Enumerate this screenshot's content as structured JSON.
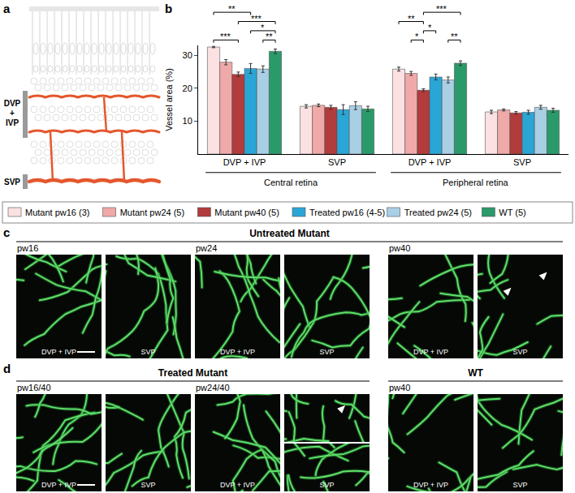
{
  "chart_data": {
    "type": "bar",
    "categories": [
      "DVP + IVP",
      "SVP",
      "DVP + IVP",
      "SVP"
    ],
    "category_groups": [
      {
        "label": "Central retina",
        "span": [
          0,
          1
        ]
      },
      {
        "label": "Peripheral retina",
        "span": [
          2,
          3
        ]
      }
    ],
    "y_label": "Vessel area (%)",
    "ylim": [
      0,
      33
    ],
    "yticks": [
      10,
      20,
      30
    ],
    "grid": false,
    "legend": "bottom",
    "series": [
      {
        "name": "Mutant pw16 (3)",
        "color": "#fbe1e1",
        "values": [
          32.5,
          14.5,
          25.8,
          12.8
        ],
        "errors": [
          0.2,
          0.5,
          0.6,
          0.5
        ]
      },
      {
        "name": "Mutant pw24 (5)",
        "color": "#f0a9a9",
        "values": [
          27.9,
          14.8,
          24.5,
          13.4
        ],
        "errors": [
          0.8,
          0.4,
          0.6,
          0.3
        ]
      },
      {
        "name": "Mutant pw40 (5)",
        "color": "#b23b3b",
        "values": [
          24.2,
          14.2,
          19.4,
          12.5
        ],
        "errors": [
          0.7,
          0.6,
          0.4,
          0.4
        ]
      },
      {
        "name": "Treated pw16 (4-5)",
        "color": "#2aa6d6",
        "values": [
          26.0,
          13.5,
          23.4,
          12.7
        ],
        "errors": [
          1.5,
          1.5,
          0.9,
          0.6
        ]
      },
      {
        "name": "Treated pw24 (5)",
        "color": "#a9cfe5",
        "values": [
          25.8,
          14.7,
          22.5,
          14.2
        ],
        "errors": [
          1.0,
          1.2,
          0.9,
          0.6
        ]
      },
      {
        "name": "WT (5)",
        "color": "#2b9a6b",
        "values": [
          31.2,
          13.7,
          27.6,
          13.3
        ],
        "errors": [
          0.7,
          0.8,
          0.7,
          0.6
        ]
      }
    ],
    "significance": [
      {
        "category": 0,
        "from": 0,
        "to": 2,
        "label": "***"
      },
      {
        "category": 0,
        "from": 2,
        "to": 5,
        "label": "***"
      },
      {
        "category": 0,
        "from": 0,
        "to": 3,
        "label": "**"
      },
      {
        "category": 0,
        "from": 3,
        "to": 5,
        "label": "*"
      },
      {
        "category": 0,
        "from": 4,
        "to": 5,
        "label": "**"
      },
      {
        "category": 2,
        "from": 0,
        "to": 2,
        "label": "**"
      },
      {
        "category": 2,
        "from": 2,
        "to": 5,
        "label": "***"
      },
      {
        "category": 2,
        "from": 1,
        "to": 2,
        "label": "*"
      },
      {
        "category": 2,
        "from": 2,
        "to": 3,
        "label": "*"
      },
      {
        "category": 2,
        "from": 4,
        "to": 5,
        "label": "**"
      }
    ]
  },
  "figure": {
    "panel_a": {
      "label": "a",
      "layers": [
        "DVP + IVP",
        "SVP"
      ]
    },
    "panel_b": {
      "label": "b"
    },
    "panel_c": {
      "label": "c",
      "title": "Untreated Mutant",
      "columns": [
        {
          "label": "pw16",
          "images": [
            "DVP + IVP",
            "SVP"
          ]
        },
        {
          "label": "pw24",
          "images": [
            "DVP + IVP",
            "SVP"
          ]
        },
        {
          "label": "pw40",
          "images": [
            "DVP + IVP",
            "SVP"
          ]
        }
      ]
    },
    "panel_d": {
      "label": "d",
      "groups": [
        {
          "title": "Treated Mutant",
          "columns": [
            {
              "label": "pw16/40",
              "images": [
                "DVP + IVP",
                "SVP"
              ]
            },
            {
              "label": "pw24/40",
              "images": [
                "DVP + IVP",
                "SVP"
              ],
              "split": true
            }
          ]
        },
        {
          "title": "WT",
          "columns": [
            {
              "label": "pw40",
              "images": [
                "DVP + IVP",
                "SVP"
              ]
            }
          ]
        }
      ]
    }
  }
}
